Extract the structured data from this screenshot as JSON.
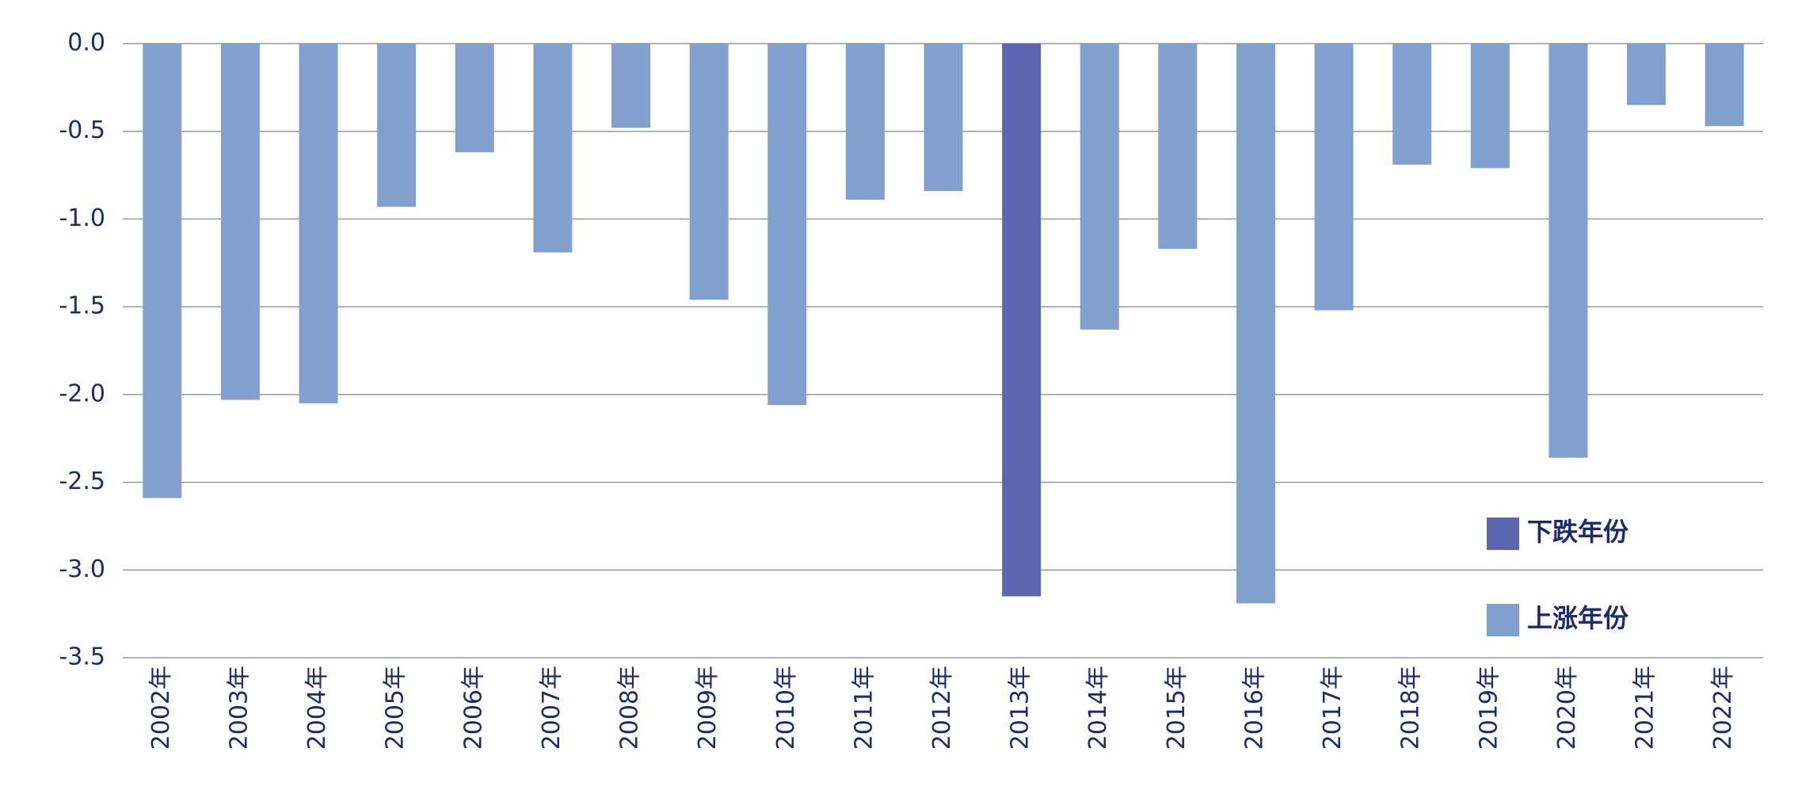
{
  "chart_data": {
    "type": "bar",
    "categories": [
      "2002年",
      "2003年",
      "2004年",
      "2005年",
      "2006年",
      "2007年",
      "2008年",
      "2009年",
      "2010年",
      "2011年",
      "2012年",
      "2013年",
      "2014年",
      "2015年",
      "2016年",
      "2017年",
      "2018年",
      "2019年",
      "2020年",
      "2021年",
      "2022年"
    ],
    "series": [
      {
        "name": "下跌年份",
        "color": "#5a67b0",
        "values": [
          null,
          null,
          null,
          null,
          null,
          null,
          null,
          null,
          null,
          null,
          null,
          -3.15,
          null,
          null,
          null,
          null,
          null,
          null,
          null,
          null,
          null
        ]
      },
      {
        "name": "上涨年份",
        "color": "#82a0cd",
        "values": [
          -2.59,
          -2.03,
          -2.05,
          -0.93,
          -0.62,
          -1.19,
          -0.48,
          -1.46,
          -2.06,
          -0.89,
          -0.84,
          null,
          -1.63,
          -1.17,
          -3.19,
          -1.52,
          -0.69,
          -0.71,
          -2.36,
          -0.35,
          -0.47
        ]
      }
    ],
    "ylim": [
      -3.5,
      0
    ],
    "yticks": [
      {
        "value": 0,
        "label": "0.0"
      },
      -0.5,
      {
        "value": -1,
        "label": "-1.0"
      },
      -1.5,
      {
        "value": -2,
        "label": "-2.0"
      },
      -2.5,
      {
        "value": -3,
        "label": "-3.0"
      },
      -3.5
    ],
    "grid": true,
    "legend": "lower right"
  }
}
